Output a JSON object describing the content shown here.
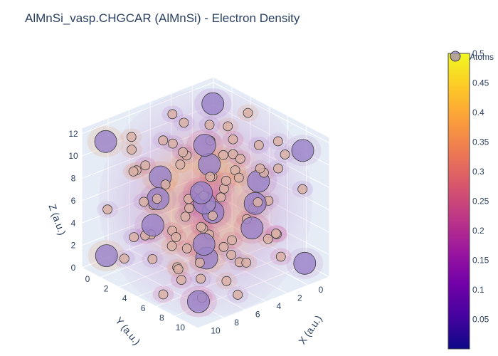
{
  "chart_data": {
    "type": "scatter3d+isosurface",
    "title": "AlMnSi_vasp.CHGCAR (AlMnSi) - Electron Density",
    "axes": {
      "x": {
        "title": "X (a.u.)",
        "ticks": [
          "0",
          "2",
          "4",
          "6",
          "8",
          "10"
        ],
        "range": [
          0,
          12.5
        ]
      },
      "y": {
        "title": "Y (a.u.)",
        "ticks": [
          "0",
          "2",
          "4",
          "6",
          "8",
          "10"
        ],
        "range": [
          0,
          12.5
        ]
      },
      "z": {
        "title": "Z (a.u.)",
        "ticks": [
          "0",
          "2",
          "4",
          "6",
          "8",
          "10",
          "12"
        ],
        "range": [
          0,
          12.5
        ]
      }
    },
    "colorbar": {
      "ticks": [
        "0.05",
        "0.1",
        "0.15",
        "0.2",
        "0.25",
        "0.3",
        "0.35",
        "0.4",
        "0.45",
        "0.5"
      ],
      "min": 0.0,
      "max": 0.5,
      "colorscale": [
        "#0d0887",
        "#46039f",
        "#7201a8",
        "#9c179e",
        "#bd3786",
        "#d8576b",
        "#ed7953",
        "#fb9f3a",
        "#fdca26",
        "#f0f921"
      ]
    },
    "legend": {
      "entries": [
        "Atoms"
      ],
      "position": "top-right"
    },
    "series": [
      {
        "name": "Atoms",
        "marker_colors": {
          "large": "#9a82c8",
          "small": "#d9b0a6",
          "outline": "#3b3b3b"
        },
        "points": [
          {
            "x": 3.1,
            "y": 3.0,
            "z": 3.4,
            "size": "small"
          },
          {
            "x": 9.4,
            "y": 3.1,
            "z": 3.2,
            "size": "small"
          },
          {
            "x": 3.2,
            "y": 9.3,
            "z": 3.1,
            "size": "small"
          },
          {
            "x": 9.2,
            "y": 9.4,
            "z": 3.3,
            "size": "small"
          },
          {
            "x": 3.3,
            "y": 3.2,
            "z": 9.4,
            "size": "small"
          },
          {
            "x": 9.3,
            "y": 3.4,
            "z": 9.2,
            "size": "small"
          },
          {
            "x": 3.1,
            "y": 9.2,
            "z": 9.3,
            "size": "small"
          },
          {
            "x": 9.5,
            "y": 9.3,
            "z": 9.4,
            "size": "small"
          },
          {
            "x": 6.2,
            "y": 6.3,
            "z": 6.2,
            "size": "large"
          },
          {
            "x": 1.2,
            "y": 6.1,
            "z": 6.3,
            "size": "large"
          },
          {
            "x": 11.2,
            "y": 6.2,
            "z": 6.1,
            "size": "large"
          },
          {
            "x": 6.1,
            "y": 1.1,
            "z": 6.2,
            "size": "large"
          },
          {
            "x": 6.3,
            "y": 11.3,
            "z": 6.1,
            "size": "large"
          },
          {
            "x": 6.2,
            "y": 6.1,
            "z": 1.2,
            "size": "large"
          },
          {
            "x": 6.1,
            "y": 6.2,
            "z": 11.3,
            "size": "large"
          },
          {
            "x": 1.3,
            "y": 1.2,
            "z": 11.1,
            "size": "large"
          },
          {
            "x": 11.1,
            "y": 1.3,
            "z": 11.2,
            "size": "large"
          },
          {
            "x": 1.1,
            "y": 11.2,
            "z": 11.3,
            "size": "large"
          },
          {
            "x": 11.3,
            "y": 11.1,
            "z": 11.1,
            "size": "large"
          },
          {
            "x": 1.2,
            "y": 1.1,
            "z": 1.3,
            "size": "large"
          },
          {
            "x": 11.2,
            "y": 1.2,
            "z": 1.1,
            "size": "large"
          },
          {
            "x": 1.3,
            "y": 11.3,
            "z": 1.2,
            "size": "large"
          },
          {
            "x": 11.1,
            "y": 11.2,
            "z": 1.3,
            "size": "large"
          },
          {
            "x": 3.8,
            "y": 8.6,
            "z": 6.4,
            "size": "large"
          },
          {
            "x": 8.7,
            "y": 3.7,
            "z": 6.3,
            "size": "large"
          },
          {
            "x": 4.1,
            "y": 4.0,
            "z": 7.9,
            "size": "large"
          },
          {
            "x": 8.4,
            "y": 8.3,
            "z": 4.2,
            "size": "large"
          },
          {
            "x": 2.2,
            "y": 4.3,
            "z": 4.1,
            "size": "small"
          },
          {
            "x": 4.5,
            "y": 2.1,
            "z": 8.3,
            "size": "small"
          },
          {
            "x": 7.8,
            "y": 10.2,
            "z": 2.4,
            "size": "small"
          },
          {
            "x": 10.1,
            "y": 7.7,
            "z": 10.4,
            "size": "small"
          },
          {
            "x": 5.2,
            "y": 0.8,
            "z": 3.3,
            "size": "small"
          },
          {
            "x": 0.7,
            "y": 5.4,
            "z": 9.1,
            "size": "small"
          },
          {
            "x": 11.6,
            "y": 7.1,
            "z": 3.5,
            "size": "small"
          },
          {
            "x": 7.2,
            "y": 11.7,
            "z": 9.0,
            "size": "small"
          },
          {
            "x": 2.6,
            "y": 2.7,
            "z": 0.5,
            "size": "small"
          },
          {
            "x": 9.8,
            "y": 2.5,
            "z": 11.9,
            "size": "small"
          },
          {
            "x": 2.4,
            "y": 9.9,
            "z": 11.8,
            "size": "small"
          },
          {
            "x": 9.9,
            "y": 9.8,
            "z": 0.6,
            "size": "small"
          },
          {
            "x": 5.9,
            "y": 3.5,
            "z": 0.4,
            "size": "small"
          },
          {
            "x": 3.4,
            "y": 5.8,
            "z": 12.0,
            "size": "small"
          },
          {
            "x": 8.9,
            "y": 6.6,
            "z": 0.5,
            "size": "small"
          },
          {
            "x": 6.7,
            "y": 8.8,
            "z": 11.9,
            "size": "small"
          },
          {
            "x": 0.4,
            "y": 2.9,
            "z": 6.7,
            "size": "small"
          },
          {
            "x": 12.0,
            "y": 9.6,
            "z": 6.0,
            "size": "small"
          },
          {
            "x": 2.8,
            "y": 0.4,
            "z": 5.5,
            "size": "small"
          },
          {
            "x": 9.7,
            "y": 12.1,
            "z": 6.8,
            "size": "small"
          },
          {
            "x": 4.8,
            "y": 6.9,
            "z": 4.6,
            "size": "small"
          },
          {
            "x": 7.5,
            "y": 5.6,
            "z": 7.8,
            "size": "small"
          },
          {
            "x": 5.5,
            "y": 9.4,
            "z": 8.7,
            "size": "small"
          },
          {
            "x": 7.0,
            "y": 3.0,
            "z": 3.9,
            "size": "small"
          },
          {
            "x": 1.9,
            "y": 7.6,
            "z": 2.0,
            "size": "small"
          },
          {
            "x": 10.6,
            "y": 4.9,
            "z": 10.7,
            "size": "small"
          },
          {
            "x": 0.9,
            "y": 8.1,
            "z": 7.5,
            "size": "small"
          },
          {
            "x": 11.5,
            "y": 4.2,
            "z": 5.0,
            "size": "small"
          },
          {
            "x": 4.6,
            "y": 11.6,
            "z": 4.4,
            "size": "small"
          },
          {
            "x": 8.0,
            "y": 0.9,
            "z": 8.1,
            "size": "small"
          },
          {
            "x": 3.6,
            "y": 1.8,
            "z": 10.3,
            "size": "small"
          },
          {
            "x": 8.8,
            "y": 10.8,
            "z": 2.1,
            "size": "small"
          },
          {
            "x": 1.6,
            "y": 3.7,
            "z": 2.8,
            "size": "small"
          },
          {
            "x": 10.9,
            "y": 8.9,
            "z": 9.7,
            "size": "small"
          },
          {
            "x": 6.4,
            "y": 4.7,
            "z": 10.0,
            "size": "small"
          },
          {
            "x": 6.0,
            "y": 7.8,
            "z": 2.6,
            "size": "small"
          },
          {
            "x": 4.3,
            "y": 10.4,
            "z": 7.0,
            "size": "small"
          },
          {
            "x": 8.2,
            "y": 2.0,
            "z": 5.7,
            "size": "small"
          },
          {
            "x": 2.9,
            "y": 6.5,
            "z": 1.0,
            "size": "small"
          },
          {
            "x": 9.6,
            "y": 5.9,
            "z": 11.5,
            "size": "small"
          },
          {
            "x": 0.6,
            "y": 0.9,
            "z": 8.8,
            "size": "small"
          },
          {
            "x": 11.8,
            "y": 11.6,
            "z": 3.8,
            "size": "small"
          },
          {
            "x": 5.0,
            "y": 12.0,
            "z": 10.6,
            "size": "small"
          },
          {
            "x": 7.4,
            "y": 0.5,
            "z": 1.8,
            "size": "small"
          },
          {
            "x": 12.1,
            "y": 2.2,
            "z": 8.5,
            "size": "small"
          },
          {
            "x": 0.5,
            "y": 10.5,
            "z": 4.7,
            "size": "small"
          },
          {
            "x": 5.7,
            "y": 2.6,
            "z": 6.9,
            "size": "small"
          },
          {
            "x": 6.8,
            "y": 9.9,
            "z": 5.3,
            "size": "small"
          },
          {
            "x": 3.9,
            "y": 7.3,
            "z": 10.9,
            "size": "small"
          },
          {
            "x": 8.6,
            "y": 5.1,
            "z": 1.5,
            "size": "small"
          },
          {
            "x": 2.1,
            "y": 5.0,
            "z": 7.4,
            "size": "small"
          },
          {
            "x": 10.4,
            "y": 7.4,
            "z": 5.1,
            "size": "small"
          },
          {
            "x": 7.7,
            "y": 7.1,
            "z": 9.5,
            "size": "small"
          },
          {
            "x": 4.9,
            "y": 5.3,
            "z": 3.0,
            "size": "small"
          },
          {
            "x": 1.4,
            "y": 9.0,
            "z": 9.9,
            "size": "small"
          },
          {
            "x": 10.9,
            "y": 3.2,
            "z": 2.3,
            "size": "small"
          },
          {
            "x": 3.0,
            "y": 11.1,
            "z": 1.6,
            "size": "small"
          },
          {
            "x": 9.3,
            "y": 1.4,
            "z": 10.1,
            "size": "small"
          },
          {
            "x": 5.4,
            "y": 8.2,
            "z": 0.8,
            "size": "small"
          },
          {
            "x": 7.1,
            "y": 4.4,
            "z": 11.6,
            "size": "small"
          },
          {
            "x": 0.8,
            "y": 4.6,
            "z": 11.2,
            "size": "small"
          },
          {
            "x": 11.7,
            "y": 8.0,
            "z": 1.0,
            "size": "small"
          },
          {
            "x": 4.4,
            "y": 0.6,
            "z": 11.4,
            "size": "small"
          },
          {
            "x": 8.1,
            "y": 11.9,
            "z": 0.9,
            "size": "small"
          },
          {
            "x": 6.6,
            "y": 1.5,
            "z": 9.8,
            "size": "small"
          },
          {
            "x": 5.8,
            "y": 10.9,
            "z": 2.7,
            "size": "small"
          },
          {
            "x": 1.7,
            "y": 1.6,
            "z": 4.9,
            "size": "small"
          },
          {
            "x": 10.7,
            "y": 10.6,
            "z": 7.6,
            "size": "small"
          },
          {
            "x": 3.5,
            "y": 4.5,
            "z": 5.6,
            "size": "small"
          },
          {
            "x": 9.0,
            "y": 8.0,
            "z": 6.9,
            "size": "small"
          },
          {
            "x": 2.5,
            "y": 7.9,
            "z": 5.0,
            "size": "small"
          },
          {
            "x": 10.0,
            "y": 4.6,
            "z": 7.3,
            "size": "small"
          }
        ]
      }
    ],
    "isosurface": {
      "name": "Electron Density",
      "levels": [
        0.1,
        0.2,
        0.3,
        0.4
      ]
    },
    "grid": true
  }
}
